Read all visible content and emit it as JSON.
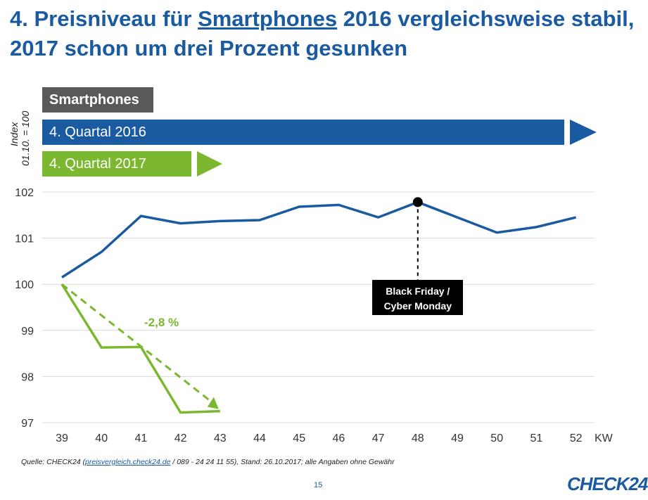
{
  "title": {
    "part1": "4. Preisniveau für ",
    "underlined": "Smartphones",
    "part2": " 2016 vergleichsweise stabil, 2017 schon um drei Prozent gesunken"
  },
  "legend": {
    "category": "Smartphones",
    "series_2016": "4. Quartal 2016",
    "series_2017": "4. Quartal 2017"
  },
  "y_axis_label": {
    "line1": "Index",
    "line2": "01.10. = 100"
  },
  "source": {
    "prefix": "Quelle: CHECK24 (",
    "link": "preisvergleich.check24.de",
    "suffix": " / 089 - 24 24 11 55), Stand: 26.10.2017; alle Angaben ohne Gewähr"
  },
  "page_number": "15",
  "logo": "CHECK24",
  "colors": {
    "blue": "#1a5aa0",
    "green": "#7cb82f",
    "gray": "#595959",
    "black": "#000000"
  },
  "chart_data": {
    "type": "line",
    "x": [
      39,
      40,
      41,
      42,
      43,
      44,
      45,
      46,
      47,
      48,
      49,
      50,
      51,
      52
    ],
    "xlabel": "KW",
    "ylim": [
      97,
      102
    ],
    "yticks": [
      97,
      98,
      99,
      100,
      101,
      102
    ],
    "grid": true,
    "series": [
      {
        "name": "4. Quartal 2016",
        "color": "#1a5aa0",
        "values": [
          100.15,
          100.7,
          101.48,
          101.32,
          101.37,
          101.39,
          101.68,
          101.72,
          101.45,
          101.78,
          101.45,
          101.12,
          101.24,
          101.45
        ]
      },
      {
        "name": "4. Quartal 2017",
        "color": "#7cb82f",
        "values": [
          100.0,
          98.63,
          98.64,
          97.22,
          97.25,
          null,
          null,
          null,
          null,
          null,
          null,
          null,
          null,
          null
        ]
      }
    ],
    "annotations": [
      {
        "text": "-2,8 %",
        "type": "trend-arrow",
        "from": [
          39,
          100.0
        ],
        "to": [
          43,
          97.25
        ]
      },
      {
        "text_line1": "Black Friday /",
        "text_line2": "Cyber Monday",
        "x": 48,
        "y": 101.78
      }
    ]
  }
}
